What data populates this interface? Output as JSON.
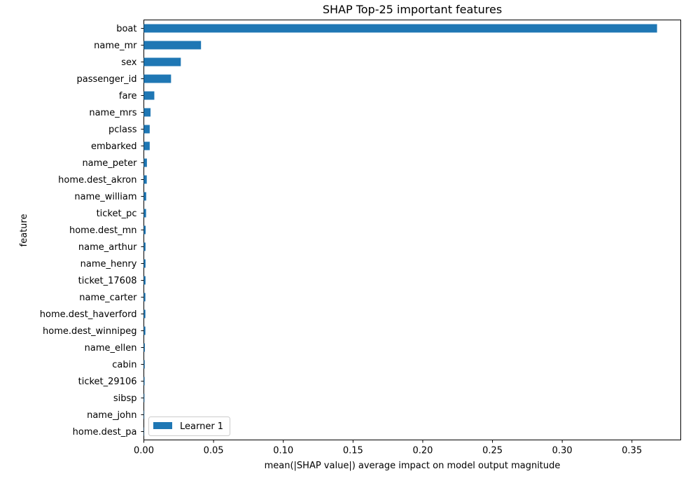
{
  "chart_data": {
    "type": "bar",
    "orientation": "horizontal",
    "title": "SHAP Top-25 important features",
    "xlabel": "mean(|SHAP value|) average impact on model output magnitude",
    "ylabel": "feature",
    "xlim": [
      0,
      0.385
    ],
    "xticks": [
      "0.00",
      "0.05",
      "0.10",
      "0.15",
      "0.20",
      "0.25",
      "0.30",
      "0.35"
    ],
    "grid": false,
    "legend_position": "lower-left",
    "categories": [
      "boat",
      "name_mr",
      "sex",
      "passenger_id",
      "fare",
      "name_mrs",
      "pclass",
      "embarked",
      "name_peter",
      "home.dest_akron",
      "name_william",
      "ticket_pc",
      "home.dest_mn",
      "name_arthur",
      "name_henry",
      "ticket_17608",
      "name_carter",
      "home.dest_haverford",
      "home.dest_winnipeg",
      "name_ellen",
      "cabin",
      "ticket_29106",
      "sibsp",
      "name_john",
      "home.dest_pa"
    ],
    "series": [
      {
        "name": "Learner 1",
        "color": "#1f77b4",
        "values": [
          0.368,
          0.041,
          0.0265,
          0.0195,
          0.0075,
          0.0048,
          0.0042,
          0.0042,
          0.0022,
          0.0021,
          0.0017,
          0.0016,
          0.0013,
          0.0012,
          0.0012,
          0.0012,
          0.0011,
          0.0011,
          0.0011,
          0.0007,
          0.0006,
          0.0005,
          0.0004,
          0.0003,
          0.0002
        ]
      }
    ]
  }
}
